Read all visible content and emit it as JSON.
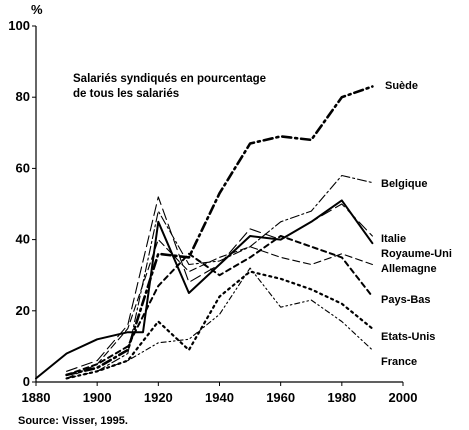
{
  "chart_data": {
    "type": "line",
    "title": "",
    "ylabel": "%",
    "xlabel": "",
    "note_lines": [
      "Salariés syndiqués en pourcentage",
      "de tous les salariés"
    ],
    "source": "Source: Visser, 1995.",
    "xlim": [
      1880,
      2000
    ],
    "ylim": [
      0,
      100
    ],
    "xticks": [
      1880,
      1900,
      1920,
      1940,
      1960,
      1980,
      2000
    ],
    "yticks": [
      0,
      20,
      40,
      60,
      80,
      100
    ],
    "grid": false,
    "series": [
      {
        "name": "Suède",
        "style": "dashdot-bold",
        "x": [
          1890,
          1900,
          1910,
          1920,
          1930,
          1940,
          1950,
          1960,
          1970,
          1980,
          1990
        ],
        "y": [
          2,
          4,
          9,
          36,
          35,
          53,
          67,
          69,
          68,
          80,
          83
        ]
      },
      {
        "name": "Belgique",
        "style": "dashdot-thin",
        "x": [
          1900,
          1910,
          1920,
          1930,
          1940,
          1950,
          1960,
          1970,
          1980,
          1990
        ],
        "y": [
          3,
          8,
          48,
          33,
          34,
          38,
          45,
          48,
          58,
          56
        ]
      },
      {
        "name": "Italie",
        "style": "solid",
        "x": [
          1880,
          1890,
          1900,
          1910,
          1915,
          1920,
          1930,
          1940,
          1950,
          1960,
          1970,
          1980,
          1990
        ],
        "y": [
          1,
          8,
          12,
          14,
          14,
          45,
          25,
          33,
          41,
          40,
          45,
          51,
          39
        ]
      },
      {
        "name": "Royaume-Uni",
        "style": "dashed-long",
        "x": [
          1890,
          1900,
          1910,
          1920,
          1930,
          1940,
          1950,
          1960,
          1970,
          1980,
          1990
        ],
        "y": [
          3,
          6,
          16,
          52,
          28,
          33,
          43,
          40,
          45,
          50,
          41
        ]
      },
      {
        "name": "Allemagne",
        "style": "dashed-medium",
        "x": [
          1890,
          1900,
          1910,
          1920,
          1930,
          1940,
          1950,
          1960,
          1970,
          1980,
          1990
        ],
        "y": [
          1,
          5,
          15,
          40,
          31,
          35,
          38,
          35,
          33,
          36,
          33
        ]
      },
      {
        "name": "Pays-Bas",
        "style": "dashed-short-bold",
        "x": [
          1890,
          1900,
          1910,
          1920,
          1930,
          1940,
          1950,
          1960,
          1970,
          1980,
          1990
        ],
        "y": [
          2,
          5,
          10,
          27,
          36,
          30,
          35,
          41,
          38,
          35,
          24
        ]
      },
      {
        "name": "Etats-Unis",
        "style": "dotted-bold",
        "x": [
          1890,
          1900,
          1910,
          1920,
          1930,
          1940,
          1950,
          1960,
          1970,
          1980,
          1990
        ],
        "y": [
          1,
          3,
          6,
          17,
          9,
          24,
          31,
          29,
          26,
          22,
          15
        ]
      },
      {
        "name": "France",
        "style": "dashdot-dotted",
        "x": [
          1890,
          1900,
          1910,
          1920,
          1930,
          1940,
          1950,
          1960,
          1970,
          1980,
          1990
        ],
        "y": [
          1,
          3,
          6,
          11,
          12,
          19,
          32,
          21,
          23,
          17,
          9
        ]
      }
    ]
  }
}
